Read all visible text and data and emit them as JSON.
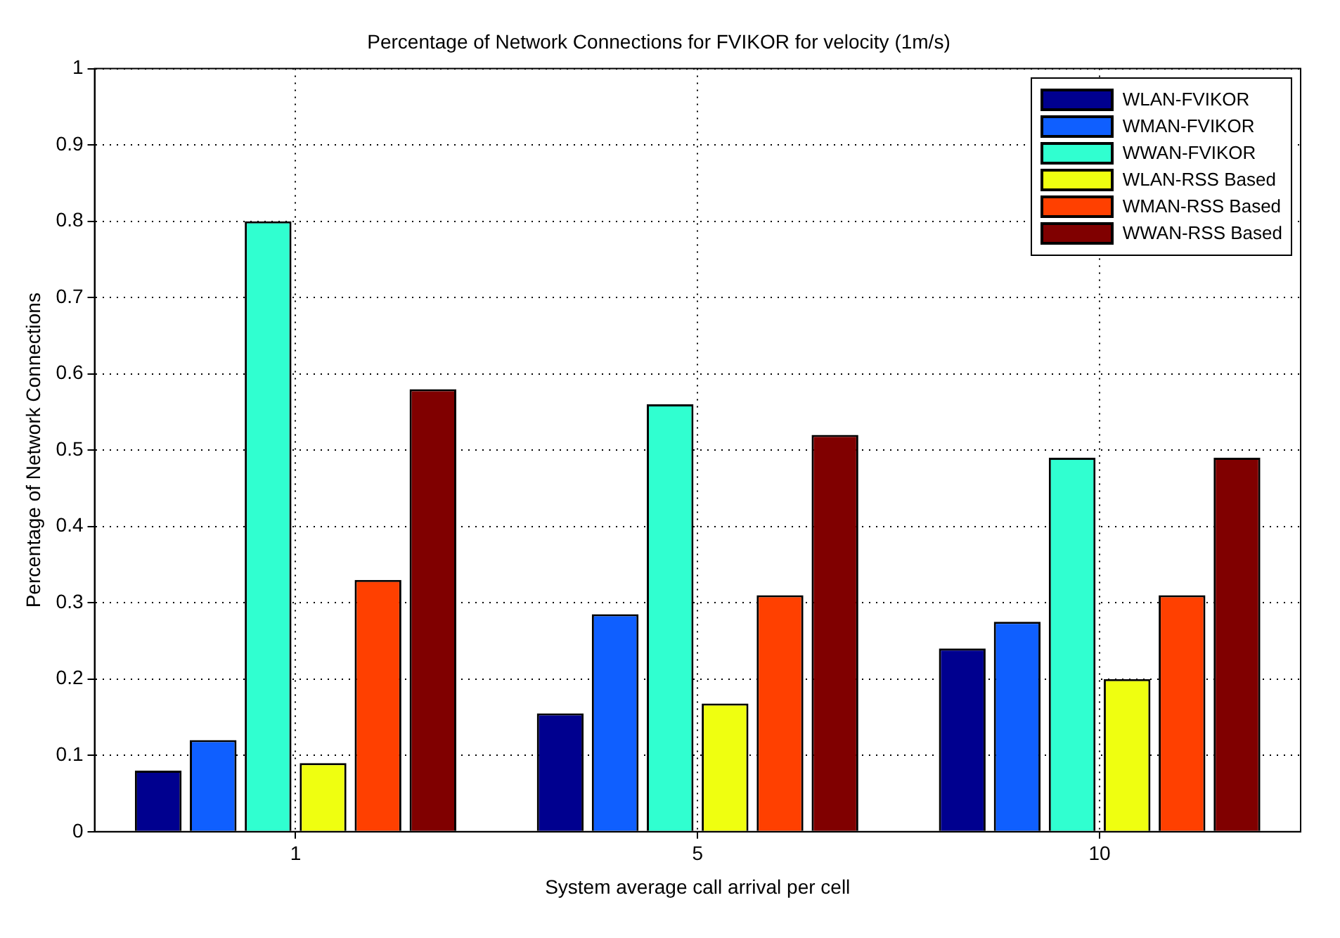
{
  "chart_data": {
    "type": "bar",
    "title": "Percentage of Network Connections for FVIKOR for velocity (1m/s)",
    "xlabel": "System average call arrival per cell",
    "ylabel": "Percentage of Network Connections",
    "categories": [
      "1",
      "5",
      "10"
    ],
    "series": [
      {
        "name": "WLAN-FVIKOR",
        "color": "#00008f",
        "values": [
          0.08,
          0.155,
          0.24
        ]
      },
      {
        "name": "WMAN-FVIKOR",
        "color": "#0f5fff",
        "values": [
          0.12,
          0.285,
          0.275
        ]
      },
      {
        "name": "WWAN-FVIKOR",
        "color": "#30ffd0",
        "values": [
          0.8,
          0.56,
          0.49
        ]
      },
      {
        "name": "WLAN-RSS Based",
        "color": "#efff10",
        "values": [
          0.09,
          0.168,
          0.2
        ]
      },
      {
        "name": "WMAN-RSS Based",
        "color": "#ff4000",
        "values": [
          0.33,
          0.31,
          0.31
        ]
      },
      {
        "name": "WWAN-RSS Based",
        "color": "#800000",
        "values": [
          0.58,
          0.52,
          0.49
        ]
      }
    ],
    "ylim": [
      0,
      1
    ],
    "yticks": [
      0,
      0.1,
      0.2,
      0.3,
      0.4,
      0.5,
      0.6,
      0.7,
      0.8,
      0.9,
      1
    ],
    "grid": true,
    "legend": "top right"
  }
}
